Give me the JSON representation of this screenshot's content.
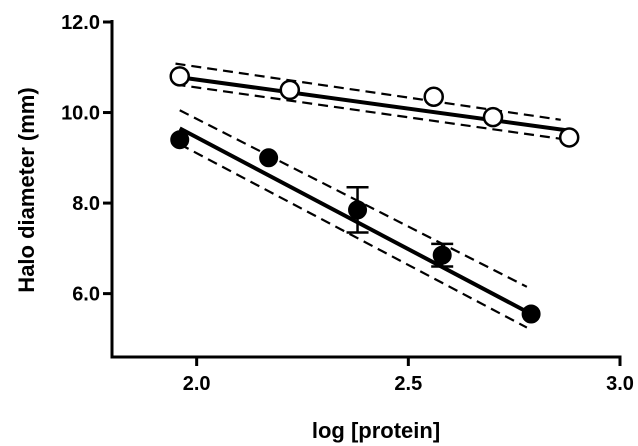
{
  "chart_data": {
    "type": "scatter",
    "xlabel": "log [protein]",
    "ylabel": "Halo diameter (mm)",
    "xlim": [
      1.8,
      3.0
    ],
    "ylim": [
      4.6,
      12.0
    ],
    "x_ticks": [
      2.0,
      2.5,
      3.0
    ],
    "x_tick_labels": [
      "2.0",
      "2.5",
      "3.0"
    ],
    "y_ticks": [
      6.0,
      8.0,
      10.0,
      12.0
    ],
    "y_tick_labels": [
      "6.0",
      "8.0",
      "10.0",
      "12.0"
    ],
    "grid": false,
    "series": [
      {
        "marker": "open-circle",
        "x": [
          1.96,
          2.22,
          2.56,
          2.7,
          2.88
        ],
        "y": [
          10.8,
          10.5,
          10.35,
          9.9,
          9.45
        ],
        "fit_line": {
          "x": [
            1.96,
            2.88
          ],
          "y": [
            10.78,
            9.6
          ]
        },
        "ci_upper": {
          "x": [
            1.95,
            2.86
          ],
          "y": [
            11.08,
            9.84
          ]
        },
        "ci_lower": {
          "x": [
            1.95,
            2.86
          ],
          "y": [
            10.62,
            9.42
          ]
        }
      },
      {
        "marker": "filled-circle",
        "x": [
          1.96,
          2.17,
          2.38,
          2.58,
          2.79
        ],
        "y": [
          9.4,
          9.0,
          7.85,
          6.85,
          5.55
        ],
        "y_err": [
          0,
          0,
          0.5,
          0.25,
          0
        ],
        "fit_line": {
          "x": [
            1.96,
            2.79
          ],
          "y": [
            9.65,
            5.55
          ]
        },
        "ci_upper": {
          "x": [
            1.96,
            2.78
          ],
          "y": [
            10.05,
            6.15
          ]
        },
        "ci_lower": {
          "x": [
            1.96,
            2.78
          ],
          "y": [
            9.3,
            5.25
          ]
        }
      }
    ]
  }
}
